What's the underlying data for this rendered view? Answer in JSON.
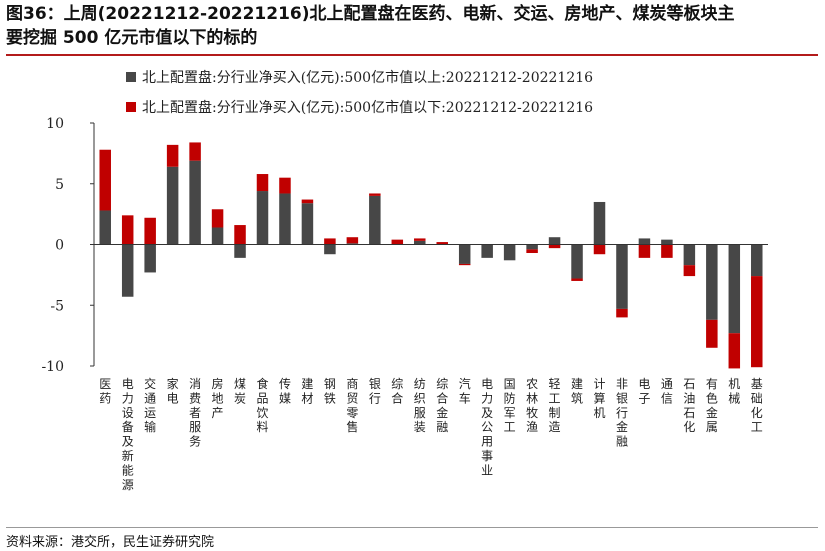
{
  "figure": {
    "title_line1": "图36：上周(20221212-20221216)北上配置盘在医药、电新、交运、房地产、煤炭等板块主",
    "title_line2": "要挖掘 500 亿元市值以下的标的",
    "source": "资料来源：港交所，民生证券研究院"
  },
  "colors": {
    "above": "#474747",
    "below": "#c00000",
    "title_rule": "#b31b1b"
  },
  "chart_data": {
    "type": "bar",
    "stacked": true,
    "ylim": [
      -10,
      10
    ],
    "yticks": [
      10,
      5,
      0,
      -5,
      -10
    ],
    "legend_position": "top",
    "categories": [
      "医药",
      "电力设备及新能源",
      "交通运输",
      "家电",
      "消费者服务",
      "房地产",
      "煤炭",
      "食品饮料",
      "传媒",
      "建材",
      "钢铁",
      "商贸零售",
      "银行",
      "综合",
      "纺织服装",
      "综合金融",
      "汽车",
      "电力及公用事业",
      "国防军工",
      "农林牧渔",
      "轻工制造",
      "建筑",
      "计算机",
      "非银行金融",
      "电子",
      "通信",
      "石油石化",
      "有色金属",
      "机械",
      "基础化工"
    ],
    "series": [
      {
        "name": "北上配置盘:分行业净买入(亿元):500亿市值以上:20221212-20221216",
        "color": "#474747",
        "values": [
          2.8,
          -4.3,
          -2.3,
          6.4,
          6.9,
          1.4,
          -1.1,
          4.4,
          4.2,
          3.4,
          -0.8,
          0.1,
          4.0,
          0.0,
          0.3,
          0.0,
          -1.6,
          -1.1,
          -1.3,
          -0.4,
          0.6,
          -2.8,
          3.5,
          -5.3,
          0.5,
          0.4,
          -1.7,
          -6.2,
          -7.3,
          -2.6
        ]
      },
      {
        "name": "北上配置盘:分行业净买入(亿元):500亿市值以下:20221212-20221216",
        "color": "#c00000",
        "values": [
          5.0,
          2.4,
          2.2,
          1.8,
          1.5,
          1.5,
          1.6,
          1.4,
          1.3,
          0.3,
          0.5,
          0.5,
          0.2,
          0.4,
          0.2,
          0.2,
          -0.1,
          0.0,
          0.0,
          -0.3,
          -0.3,
          -0.2,
          -0.8,
          -0.7,
          -1.1,
          -1.1,
          -0.9,
          -2.3,
          -2.9,
          -7.5
        ]
      }
    ]
  }
}
